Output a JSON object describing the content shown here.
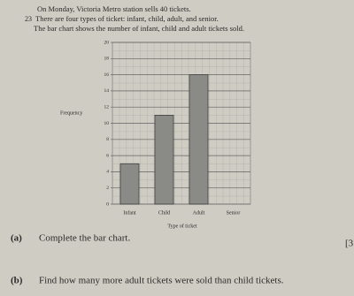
{
  "question_number": "23",
  "intro": [
    "On Monday, Victoria Metro station sells 40 tickets.",
    "There are four types of ticket: infant, child, adult, and senior.",
    "The bar chart shows the number of infant, child and adult tickets sold."
  ],
  "chart_data": {
    "type": "bar",
    "categories": [
      "Infant",
      "Child",
      "Adult",
      "Senior"
    ],
    "values": [
      5,
      11,
      16,
      null
    ],
    "color": "#8a8a86",
    "x_label": "Type of ticket",
    "y_label": "Frequency",
    "ylim": [
      0,
      20
    ],
    "yticks": [
      0,
      2,
      4,
      6,
      8,
      10,
      12,
      14,
      16,
      18,
      20
    ],
    "grid": true
  },
  "parts": [
    {
      "label": "(a)",
      "text": "Complete the bar chart.",
      "marks": "[3"
    },
    {
      "label": "(b)",
      "text": "Find how many more adult tickets were sold than child tickets."
    }
  ]
}
